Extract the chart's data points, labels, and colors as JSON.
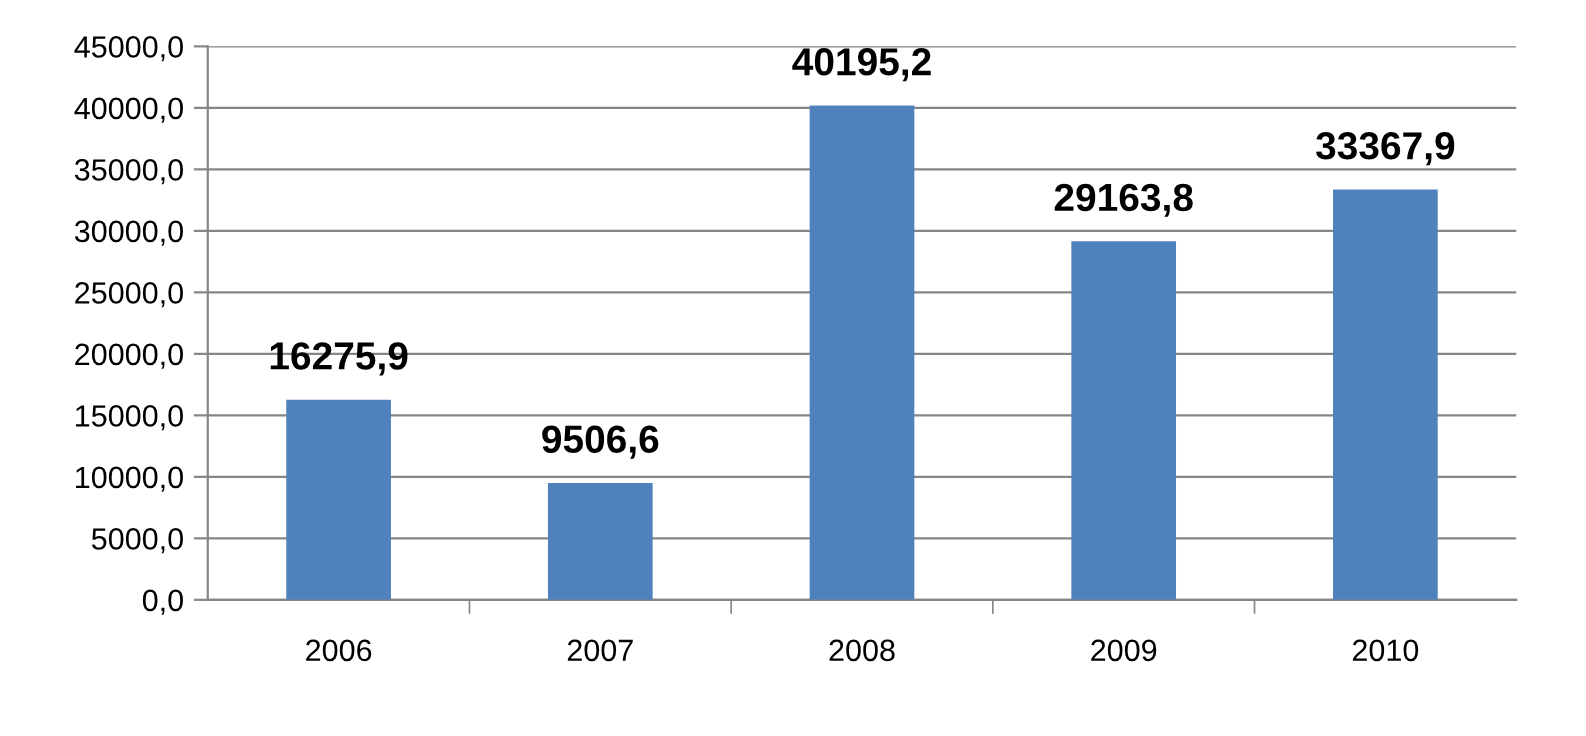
{
  "chart_data": {
    "type": "bar",
    "categories": [
      "2006",
      "2007",
      "2008",
      "2009",
      "2010"
    ],
    "values": [
      16275.9,
      9506.6,
      40195.2,
      29163.8,
      33367.9
    ],
    "value_labels": [
      "16275,9",
      "9506,6",
      "40195,2",
      "29163,8",
      "33367,9"
    ],
    "color": "#4f81bd",
    "ylim": [
      0,
      45000
    ],
    "yticks": [
      {
        "value": 0,
        "label": "0,0"
      },
      {
        "value": 5000,
        "label": "5000,0"
      },
      {
        "value": 10000,
        "label": "10000,0"
      },
      {
        "value": 15000,
        "label": "15000,0"
      },
      {
        "value": 20000,
        "label": "20000,0"
      },
      {
        "value": 25000,
        "label": "25000,0"
      },
      {
        "value": 30000,
        "label": "30000,0"
      },
      {
        "value": 35000,
        "label": "35000,0"
      },
      {
        "value": 40000,
        "label": "40000,0"
      },
      {
        "value": 45000,
        "label": "45000,0"
      }
    ],
    "grid": "y",
    "legend": false
  }
}
